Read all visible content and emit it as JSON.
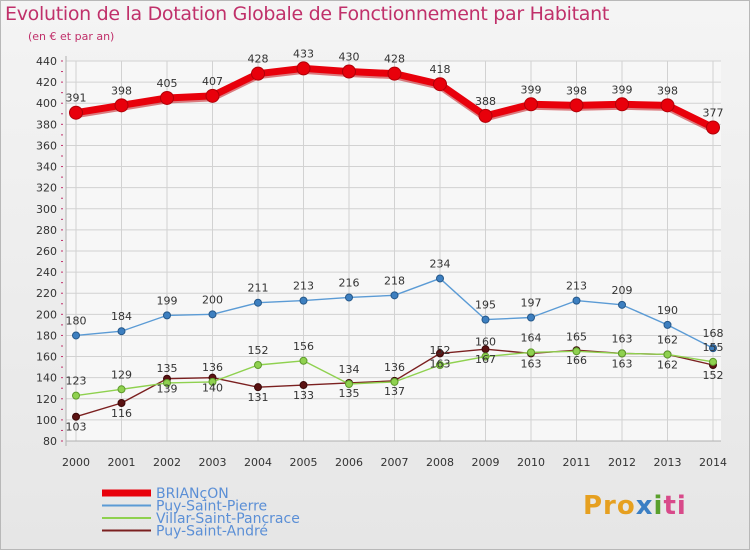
{
  "title": "Evolution de la Dotation Globale de Fonctionnement par Habitant",
  "subtitle": "(en € et par an)",
  "logo": {
    "parts": [
      "Pro",
      "x",
      "i",
      "ti"
    ],
    "colors": [
      "#e6a020",
      "#3b7fc4",
      "#5aa02c",
      "#d84a8a"
    ]
  },
  "chart_data": {
    "type": "line",
    "title": "Evolution de la Dotation Globale de Fonctionnement par Habitant",
    "subtitle": "(en € et par an)",
    "x": [
      "2000",
      "2001",
      "2002",
      "2003",
      "2004",
      "2005",
      "2006",
      "2007",
      "2008",
      "2009",
      "2010",
      "2011",
      "2012",
      "2013",
      "2014"
    ],
    "ylim": [
      80,
      440
    ],
    "yticks": [
      80,
      100,
      120,
      140,
      160,
      180,
      200,
      220,
      240,
      260,
      280,
      300,
      320,
      340,
      360,
      380,
      400,
      420,
      440
    ],
    "grid": true,
    "legend_position": "bottom-left",
    "series": [
      {
        "name": "BRIANçON",
        "color": "#e8000b",
        "values": [
          391,
          398,
          405,
          407,
          428,
          433,
          430,
          428,
          418,
          388,
          399,
          398,
          399,
          398,
          377
        ]
      },
      {
        "name": "Puy-Saint-Pierre",
        "color": "#5b9bd5",
        "values": [
          180,
          184,
          199,
          200,
          211,
          213,
          216,
          218,
          234,
          195,
          197,
          213,
          209,
          190,
          168
        ]
      },
      {
        "name": "Villar-Saint-Pancrace",
        "color": "#8fd14f",
        "values": [
          123,
          129,
          135,
          136,
          152,
          156,
          134,
          136,
          152,
          160,
          164,
          165,
          163,
          162,
          155
        ]
      },
      {
        "name": "Puy-Saint-André",
        "color": "#7b2020",
        "values": [
          103,
          116,
          139,
          140,
          131,
          133,
          135,
          137,
          163,
          167,
          163,
          166,
          163,
          162,
          152
        ]
      }
    ]
  }
}
